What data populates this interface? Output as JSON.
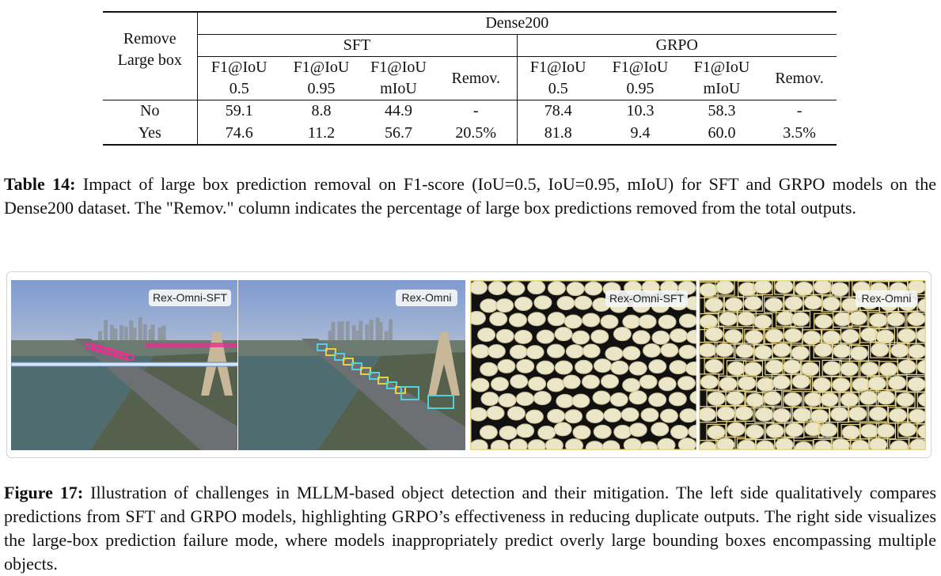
{
  "table": {
    "header": {
      "row_label": [
        "Remove",
        "Large box"
      ],
      "dataset": "Dense200",
      "groups": [
        "SFT",
        "GRPO"
      ],
      "columns": [
        [
          "F1@IoU",
          "0.5"
        ],
        [
          "F1@IoU",
          "0.95"
        ],
        [
          "F1@IoU",
          "mIoU"
        ],
        [
          "Remov."
        ],
        [
          "F1@IoU",
          "0.5"
        ],
        [
          "F1@IoU",
          "0.95"
        ],
        [
          "F1@IoU",
          "mIoU"
        ],
        [
          "Remov."
        ]
      ]
    },
    "rows": [
      [
        "No",
        "59.1",
        "8.8",
        "44.9",
        "-",
        "78.4",
        "10.3",
        "58.3",
        "-"
      ],
      [
        "Yes",
        "74.6",
        "11.2",
        "56.7",
        "20.5%",
        "81.8",
        "9.4",
        "60.0",
        "3.5%"
      ]
    ]
  },
  "table_caption": {
    "label": "Table 14:",
    "text": "Impact of large box prediction removal on F1-score (IoU=0.5, IoU=0.95, mIoU) for SFT and GRPO models on the Dense200 dataset.  The \"Remov.\" column indicates the percentage of large box predictions removed from the total outputs."
  },
  "figure": {
    "panels": [
      {
        "label": "Rex-Omni-SFT"
      },
      {
        "label": "Rex-Omni"
      },
      {
        "label": "Rex-Omni-SFT"
      },
      {
        "label": "Rex-Omni"
      }
    ]
  },
  "figure_caption": {
    "label": "Figure 17:",
    "text": "Illustration of challenges in MLLM-based object detection and their mitigation.  The left side qualitatively compares predictions from SFT and GRPO models, highlighting GRPO’s effectiveness in reducing duplicate outputs. The right side visualizes the large-box prediction failure mode, where models inappropriately predict overly large bounding boxes encompassing multiple objects."
  }
}
